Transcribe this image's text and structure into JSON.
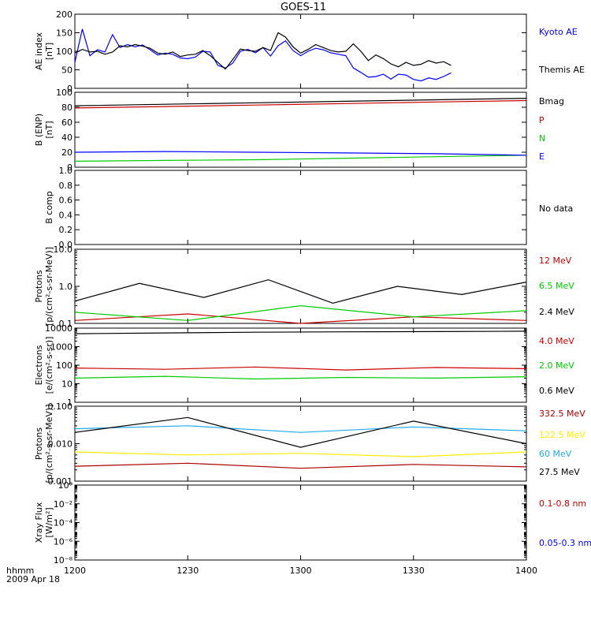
{
  "title": "GOES-11",
  "time_axis": {
    "unit_label": "hhmm",
    "date_label": "2009 Apr 18",
    "ticks": [
      "1200",
      "1230",
      "1300",
      "1330",
      "1400"
    ]
  },
  "chart_data": [
    {
      "type": "line",
      "ylabel": "AE index",
      "yunit": "[nT]",
      "ylim": [
        0,
        200
      ],
      "yticks": [
        "0",
        "50",
        "100",
        "150",
        "200"
      ],
      "x_minutes": [
        0,
        2,
        4,
        6,
        8,
        10,
        12,
        14,
        16,
        18,
        20,
        22,
        24,
        26,
        28,
        30,
        32,
        34,
        36,
        38,
        40,
        42,
        44,
        46,
        48,
        50,
        52,
        54,
        56,
        58,
        60,
        62,
        64,
        66,
        68,
        70,
        72,
        74,
        76,
        78,
        80,
        82,
        84,
        86,
        88,
        90,
        92,
        94,
        96,
        98,
        100,
        102,
        104,
        106,
        108,
        110,
        112,
        114,
        116,
        118,
        120
      ],
      "series": [
        {
          "name": "Kyoto AE",
          "color": "#0000ff",
          "values": [
            70,
            160,
            88,
            104,
            98,
            145,
            110,
            118,
            112,
            117,
            104,
            90,
            95,
            92,
            82,
            80,
            84,
            100,
            98,
            62,
            55,
            68,
            100,
            105,
            96,
            110,
            87,
            115,
            128,
            102,
            88,
            100,
            108,
            104,
            96,
            92,
            88,
            55,
            43,
            30,
            32,
            38,
            25,
            38,
            36,
            24,
            20,
            28,
            24,
            32,
            42
          ]
        },
        {
          "name": "Themis AE",
          "color": "#000000",
          "values": [
            95,
            105,
            98,
            100,
            92,
            98,
            115,
            112,
            118,
            114,
            108,
            95,
            92,
            98,
            86,
            90,
            92,
            102,
            88,
            70,
            52,
            78,
            106,
            102,
            100,
            110,
            102,
            150,
            138,
            112,
            95,
            105,
            118,
            110,
            102,
            98,
            100,
            120,
            100,
            75,
            90,
            80,
            66,
            58,
            70,
            62,
            65,
            75,
            68,
            72,
            62
          ]
        }
      ],
      "legend": "right"
    },
    {
      "type": "line",
      "ylabel": "B (ENP)",
      "yunit": "[nT]",
      "ylim": [
        0,
        100
      ],
      "yticks": [
        "0",
        "20",
        "40",
        "60",
        "80",
        "100"
      ],
      "series": [
        {
          "name": "Bmag",
          "color": "#000000",
          "values": [
            82,
            84,
            86,
            88,
            90,
            92
          ]
        },
        {
          "name": "P",
          "color": "#cc0000",
          "values": [
            79,
            81,
            83,
            85,
            87,
            89
          ]
        },
        {
          "name": "N",
          "color": "#00cc00",
          "values": [
            8,
            9,
            10,
            12,
            14,
            16
          ]
        },
        {
          "name": "E",
          "color": "#0000ff",
          "values": [
            20,
            21,
            20,
            19,
            18,
            16
          ]
        }
      ],
      "legend": "right"
    },
    {
      "type": "line",
      "ylabel": "B comp",
      "ylim": [
        0,
        1
      ],
      "yticks": [
        "0.0",
        "0.2",
        "0.4",
        "0.6",
        "0.8",
        "1.0"
      ],
      "status": "No data",
      "series": []
    },
    {
      "type": "line",
      "ylabel": "Protons",
      "yunit": "[p/(cm²-s-sr-MeV)]",
      "yscale": "log",
      "ylim": [
        0.1,
        10
      ],
      "yticks": [
        "0.1",
        "1.0",
        "10.0"
      ],
      "series": [
        {
          "name": "12 MeV",
          "color": "#cc0000",
          "values": [
            0.12,
            0.18,
            0.1,
            0.15,
            0.12
          ]
        },
        {
          "name": "6.5 MeV",
          "color": "#00cc00",
          "values": [
            0.2,
            0.12,
            0.3,
            0.15,
            0.22
          ]
        },
        {
          "name": "2.4 MeV",
          "color": "#000000",
          "values": [
            0.4,
            1.2,
            0.5,
            1.5,
            0.35,
            1.0,
            0.6,
            1.3
          ]
        }
      ],
      "legend": "right"
    },
    {
      "type": "line",
      "ylabel": "Electrons",
      "yunit": "[e/(cm²-s-sr)]",
      "yscale": "log",
      "ylim": [
        1,
        10000
      ],
      "yticks": [
        "1",
        "10",
        "100",
        "1000",
        "10000"
      ],
      "series": [
        {
          "name": "4.0 MeV",
          "color": "#cc0000",
          "values": [
            70,
            60,
            80,
            55,
            75,
            65
          ]
        },
        {
          "name": "2.0 MeV",
          "color": "#00cc00",
          "values": [
            20,
            25,
            18,
            22,
            20,
            24
          ]
        },
        {
          "name": "0.6 MeV",
          "color": "#000000",
          "values": [
            5000,
            5500,
            6000,
            6300,
            6500,
            6800
          ]
        }
      ],
      "legend": "right"
    },
    {
      "type": "line",
      "ylabel": "Protons",
      "yunit": "[p/(cm²-s-sr-MeV)]",
      "yscale": "log",
      "ylim": [
        0.001,
        0.1
      ],
      "yticks": [
        "0.001",
        "0.010",
        "0.100"
      ],
      "series": [
        {
          "name": "332.5 MeV",
          "color": "#aa0000",
          "values": [
            0.0025,
            0.003,
            0.0022,
            0.0028,
            0.0024
          ]
        },
        {
          "name": "122.5 MeV",
          "color": "#ffee00",
          "values": [
            0.006,
            0.005,
            0.0055,
            0.0045,
            0.006
          ]
        },
        {
          "name": "60 MeV",
          "color": "#22aaee",
          "values": [
            0.025,
            0.03,
            0.02,
            0.028,
            0.022
          ]
        },
        {
          "name": "27.5 MeV",
          "color": "#000000",
          "values": [
            0.02,
            0.05,
            0.008,
            0.04,
            0.01
          ]
        }
      ],
      "legend": "right"
    },
    {
      "type": "line",
      "ylabel": "Xray Flux",
      "yunit": "[W/m²]",
      "yscale": "log",
      "ylim": [
        1e-08,
        1
      ],
      "yticks": [
        "10⁰",
        "10⁻²",
        "10⁻⁴",
        "10⁻⁶",
        "10⁻⁸"
      ],
      "series": [
        {
          "name": "0.1-0.8 nm",
          "color": "#cc0000",
          "values": []
        },
        {
          "name": "0.05-0.3 nm",
          "color": "#0000ff",
          "values": []
        }
      ],
      "legend": "right"
    }
  ]
}
